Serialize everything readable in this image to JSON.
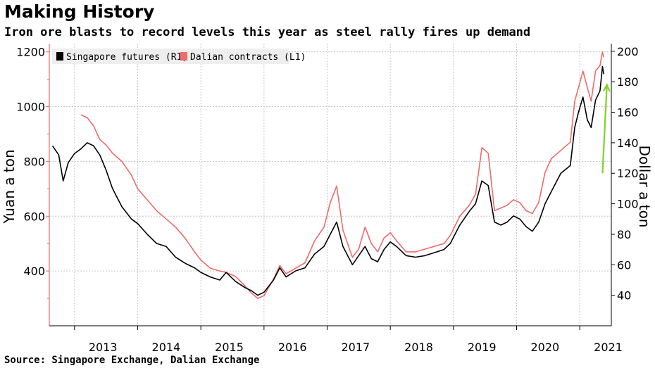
{
  "title": "Making History",
  "subtitle": "Iron ore blasts to record levels this year as steel rally fires up demand",
  "source": "Source: Singapore Exchange, Dalian Exchange",
  "colors": {
    "singapore": "#000000",
    "dalian": "#f06a6a",
    "arrow": "#7ed321",
    "grid": "#c8c8c8",
    "left_axis": "#f06a6a"
  },
  "chart_data": {
    "type": "line",
    "title": "Making History",
    "x_labels": [
      "2013",
      "2014",
      "2015",
      "2016",
      "2017",
      "2018",
      "2019",
      "2020",
      "2021"
    ],
    "x_ticks": [
      2013.0,
      2014.0,
      2015.0,
      2016.0,
      2017.0,
      2018.0,
      2019.0,
      2020.0,
      2021.0
    ],
    "xlim": [
      2012.6,
      2021.5
    ],
    "left_axis": {
      "label": "Yuan a ton",
      "ticks": [
        400,
        600,
        800,
        1000,
        1200
      ],
      "range": [
        200,
        1230
      ]
    },
    "right_axis": {
      "label": "Dollar a ton",
      "ticks": [
        40,
        60,
        80,
        100,
        120,
        140,
        160,
        180,
        200
      ],
      "range": [
        20,
        205
      ]
    },
    "legend": {
      "position": "top-left",
      "entries": [
        "Singapore futures (R1)",
        "Dalian contracts (L1)"
      ]
    },
    "series": [
      {
        "name": "Singapore futures (R1)",
        "axis": "right",
        "points": [
          [
            2012.65,
            138
          ],
          [
            2012.75,
            132
          ],
          [
            2012.82,
            115
          ],
          [
            2012.9,
            127
          ],
          [
            2013.0,
            133
          ],
          [
            2013.1,
            136
          ],
          [
            2013.2,
            140
          ],
          [
            2013.3,
            138
          ],
          [
            2013.4,
            132
          ],
          [
            2013.5,
            122
          ],
          [
            2013.6,
            110
          ],
          [
            2013.75,
            98
          ],
          [
            2013.9,
            90
          ],
          [
            2014.0,
            87
          ],
          [
            2014.15,
            80
          ],
          [
            2014.3,
            74
          ],
          [
            2014.45,
            72
          ],
          [
            2014.6,
            65
          ],
          [
            2014.75,
            61
          ],
          [
            2014.9,
            58
          ],
          [
            2015.0,
            55
          ],
          [
            2015.15,
            52
          ],
          [
            2015.3,
            50
          ],
          [
            2015.4,
            55
          ],
          [
            2015.55,
            49
          ],
          [
            2015.7,
            45
          ],
          [
            2015.8,
            43
          ],
          [
            2015.9,
            40
          ],
          [
            2016.0,
            42
          ],
          [
            2016.15,
            50
          ],
          [
            2016.25,
            58
          ],
          [
            2016.35,
            52
          ],
          [
            2016.5,
            56
          ],
          [
            2016.65,
            58
          ],
          [
            2016.8,
            67
          ],
          [
            2016.95,
            72
          ],
          [
            2017.05,
            80
          ],
          [
            2017.15,
            88
          ],
          [
            2017.25,
            72
          ],
          [
            2017.4,
            60
          ],
          [
            2017.5,
            66
          ],
          [
            2017.6,
            72
          ],
          [
            2017.7,
            64
          ],
          [
            2017.8,
            62
          ],
          [
            2017.9,
            70
          ],
          [
            2018.0,
            75
          ],
          [
            2018.1,
            72
          ],
          [
            2018.25,
            66
          ],
          [
            2018.4,
            65
          ],
          [
            2018.55,
            66
          ],
          [
            2018.7,
            68
          ],
          [
            2018.85,
            70
          ],
          [
            2018.95,
            74
          ],
          [
            2019.1,
            86
          ],
          [
            2019.25,
            95
          ],
          [
            2019.35,
            100
          ],
          [
            2019.45,
            115
          ],
          [
            2019.55,
            112
          ],
          [
            2019.65,
            88
          ],
          [
            2019.75,
            86
          ],
          [
            2019.85,
            88
          ],
          [
            2019.95,
            92
          ],
          [
            2020.05,
            90
          ],
          [
            2020.15,
            85
          ],
          [
            2020.25,
            82
          ],
          [
            2020.35,
            88
          ],
          [
            2020.45,
            100
          ],
          [
            2020.55,
            108
          ],
          [
            2020.7,
            120
          ],
          [
            2020.85,
            125
          ],
          [
            2020.92,
            150
          ],
          [
            2020.98,
            160
          ],
          [
            2021.05,
            170
          ],
          [
            2021.12,
            155
          ],
          [
            2021.18,
            150
          ],
          [
            2021.25,
            168
          ],
          [
            2021.32,
            174
          ],
          [
            2021.36,
            190
          ],
          [
            2021.38,
            185
          ]
        ]
      },
      {
        "name": "Dalian contracts (L1)",
        "axis": "left",
        "points": [
          [
            2013.1,
            970
          ],
          [
            2013.2,
            960
          ],
          [
            2013.3,
            930
          ],
          [
            2013.4,
            880
          ],
          [
            2013.5,
            860
          ],
          [
            2013.6,
            830
          ],
          [
            2013.75,
            800
          ],
          [
            2013.9,
            750
          ],
          [
            2014.0,
            700
          ],
          [
            2014.15,
            660
          ],
          [
            2014.3,
            620
          ],
          [
            2014.45,
            590
          ],
          [
            2014.6,
            560
          ],
          [
            2014.75,
            520
          ],
          [
            2014.9,
            470
          ],
          [
            2015.0,
            440
          ],
          [
            2015.15,
            410
          ],
          [
            2015.3,
            400
          ],
          [
            2015.4,
            395
          ],
          [
            2015.55,
            380
          ],
          [
            2015.7,
            345
          ],
          [
            2015.8,
            320
          ],
          [
            2015.9,
            300
          ],
          [
            2016.0,
            310
          ],
          [
            2016.15,
            370
          ],
          [
            2016.25,
            420
          ],
          [
            2016.35,
            390
          ],
          [
            2016.5,
            410
          ],
          [
            2016.65,
            430
          ],
          [
            2016.8,
            510
          ],
          [
            2016.95,
            560
          ],
          [
            2017.05,
            650
          ],
          [
            2017.15,
            710
          ],
          [
            2017.25,
            550
          ],
          [
            2017.4,
            450
          ],
          [
            2017.5,
            480
          ],
          [
            2017.6,
            560
          ],
          [
            2017.7,
            500
          ],
          [
            2017.8,
            470
          ],
          [
            2017.9,
            520
          ],
          [
            2018.0,
            540
          ],
          [
            2018.1,
            510
          ],
          [
            2018.25,
            470
          ],
          [
            2018.4,
            470
          ],
          [
            2018.55,
            480
          ],
          [
            2018.7,
            490
          ],
          [
            2018.85,
            500
          ],
          [
            2018.95,
            530
          ],
          [
            2019.1,
            600
          ],
          [
            2019.25,
            640
          ],
          [
            2019.35,
            680
          ],
          [
            2019.45,
            850
          ],
          [
            2019.55,
            830
          ],
          [
            2019.65,
            620
          ],
          [
            2019.75,
            630
          ],
          [
            2019.85,
            640
          ],
          [
            2019.95,
            660
          ],
          [
            2020.05,
            650
          ],
          [
            2020.15,
            620
          ],
          [
            2020.25,
            610
          ],
          [
            2020.35,
            650
          ],
          [
            2020.45,
            760
          ],
          [
            2020.55,
            810
          ],
          [
            2020.7,
            840
          ],
          [
            2020.85,
            870
          ],
          [
            2020.92,
            1020
          ],
          [
            2020.98,
            1070
          ],
          [
            2021.05,
            1130
          ],
          [
            2021.12,
            1070
          ],
          [
            2021.18,
            1020
          ],
          [
            2021.25,
            1130
          ],
          [
            2021.32,
            1150
          ],
          [
            2021.36,
            1200
          ],
          [
            2021.38,
            1180
          ]
        ]
      }
    ],
    "annotation": {
      "type": "arrow",
      "description": "green arrow pointing up",
      "from": [
        2021.36,
        120
      ],
      "to": [
        2021.43,
        178
      ],
      "axis": "right"
    }
  }
}
